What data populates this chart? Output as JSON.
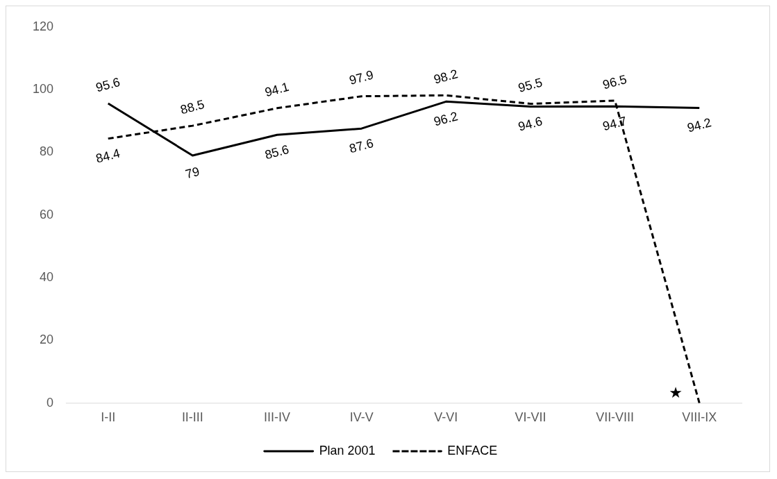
{
  "chart_data": {
    "type": "line",
    "categories": [
      "I-II",
      "II-III",
      "III-IV",
      "IV-V",
      "V-VI",
      "VI-VII",
      "VII-VIII",
      "VIII-IX"
    ],
    "series": [
      {
        "name": "Plan 2001",
        "color": "#000000",
        "line_style": "solid",
        "values": [
          95.6,
          79,
          85.6,
          87.6,
          96.2,
          94.6,
          94.7,
          94.2
        ],
        "value_labels": [
          "95.6",
          "79",
          "85.6",
          "87.6",
          "96.2",
          "94.6",
          "94.7",
          "94.2"
        ]
      },
      {
        "name": "ENFACE",
        "color": "#000000",
        "line_style": "dashed",
        "values": [
          84.4,
          88.5,
          94.1,
          97.9,
          98.2,
          95.5,
          96.5,
          0
        ],
        "value_labels": [
          "84.4",
          "88.5",
          "94.1",
          "97.9",
          "98.2",
          "95.5",
          "96.5",
          null
        ]
      }
    ],
    "annotations": [
      {
        "text": "★",
        "x": "VIII-IX",
        "y": 3
      }
    ],
    "ylim": [
      0,
      120
    ],
    "yticks": [
      0,
      20,
      40,
      60,
      80,
      100,
      120
    ],
    "grid": false,
    "legend": "bottom",
    "marker": "none"
  }
}
